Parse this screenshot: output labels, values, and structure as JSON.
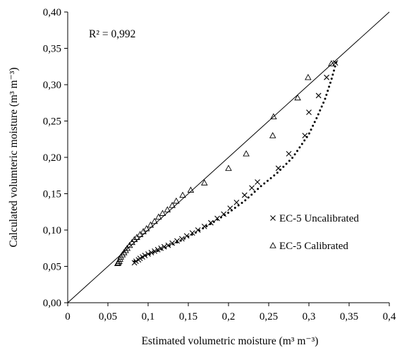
{
  "chart_data": {
    "type": "scatter",
    "title": "",
    "xlabel": "Estimated volumetric moisture (m³ m⁻³)",
    "ylabel": "Calculated volumteric moisture (m³ m⁻³)",
    "xlim": [
      0,
      0.4
    ],
    "ylim": [
      0,
      0.4
    ],
    "x_ticks": [
      "0",
      "0,05",
      "0,1",
      "0,15",
      "0,2",
      "0,25",
      "0,3",
      "0,35",
      "0,4"
    ],
    "y_ticks": [
      "0,00",
      "0,05",
      "0,10",
      "0,15",
      "0,20",
      "0,25",
      "0,30",
      "0,35",
      "0,40"
    ],
    "grid": false,
    "legend_position": "right",
    "annotation": "R² = 0,992",
    "reference_line": {
      "type": "1:1",
      "x": [
        0,
        0.4
      ],
      "y": [
        0,
        0.4
      ]
    },
    "series": [
      {
        "name": "EC-5 Uncalibrated",
        "marker": "x",
        "points": [
          [
            0.083,
            0.055
          ],
          [
            0.085,
            0.057
          ],
          [
            0.088,
            0.059
          ],
          [
            0.09,
            0.061
          ],
          [
            0.093,
            0.063
          ],
          [
            0.096,
            0.065
          ],
          [
            0.1,
            0.067
          ],
          [
            0.104,
            0.069
          ],
          [
            0.108,
            0.071
          ],
          [
            0.112,
            0.073
          ],
          [
            0.116,
            0.075
          ],
          [
            0.12,
            0.077
          ],
          [
            0.125,
            0.079
          ],
          [
            0.13,
            0.082
          ],
          [
            0.136,
            0.085
          ],
          [
            0.142,
            0.088
          ],
          [
            0.148,
            0.092
          ],
          [
            0.155,
            0.096
          ],
          [
            0.162,
            0.1
          ],
          [
            0.17,
            0.105
          ],
          [
            0.178,
            0.11
          ],
          [
            0.186,
            0.116
          ],
          [
            0.194,
            0.122
          ],
          [
            0.202,
            0.13
          ],
          [
            0.21,
            0.138
          ],
          [
            0.22,
            0.148
          ],
          [
            0.229,
            0.158
          ],
          [
            0.236,
            0.166
          ],
          [
            0.262,
            0.185
          ],
          [
            0.275,
            0.205
          ],
          [
            0.295,
            0.23
          ],
          [
            0.3,
            0.262
          ],
          [
            0.312,
            0.285
          ],
          [
            0.322,
            0.31
          ],
          [
            0.333,
            0.33
          ]
        ]
      },
      {
        "name": "EC-5 Calibrated",
        "marker": "triangle",
        "points": [
          [
            0.062,
            0.054
          ],
          [
            0.063,
            0.055
          ],
          [
            0.064,
            0.057
          ],
          [
            0.065,
            0.06
          ],
          [
            0.066,
            0.063
          ],
          [
            0.068,
            0.066
          ],
          [
            0.07,
            0.069
          ],
          [
            0.072,
            0.072
          ],
          [
            0.074,
            0.075
          ],
          [
            0.077,
            0.079
          ],
          [
            0.08,
            0.083
          ],
          [
            0.083,
            0.087
          ],
          [
            0.086,
            0.09
          ],
          [
            0.09,
            0.094
          ],
          [
            0.094,
            0.098
          ],
          [
            0.098,
            0.102
          ],
          [
            0.103,
            0.107
          ],
          [
            0.108,
            0.112
          ],
          [
            0.113,
            0.118
          ],
          [
            0.118,
            0.123
          ],
          [
            0.124,
            0.128
          ],
          [
            0.13,
            0.134
          ],
          [
            0.135,
            0.14
          ],
          [
            0.143,
            0.148
          ],
          [
            0.153,
            0.155
          ],
          [
            0.17,
            0.165
          ],
          [
            0.2,
            0.185
          ],
          [
            0.222,
            0.205
          ],
          [
            0.255,
            0.23
          ],
          [
            0.256,
            0.256
          ],
          [
            0.286,
            0.282
          ],
          [
            0.299,
            0.31
          ],
          [
            0.328,
            0.329
          ]
        ]
      }
    ],
    "trend_curve": [
      [
        0.083,
        0.057
      ],
      [
        0.1,
        0.066
      ],
      [
        0.12,
        0.075
      ],
      [
        0.14,
        0.085
      ],
      [
        0.16,
        0.097
      ],
      [
        0.18,
        0.11
      ],
      [
        0.2,
        0.124
      ],
      [
        0.22,
        0.14
      ],
      [
        0.24,
        0.16
      ],
      [
        0.26,
        0.178
      ],
      [
        0.28,
        0.2
      ],
      [
        0.3,
        0.232
      ],
      [
        0.31,
        0.255
      ],
      [
        0.32,
        0.28
      ],
      [
        0.328,
        0.307
      ],
      [
        0.334,
        0.331
      ]
    ]
  }
}
